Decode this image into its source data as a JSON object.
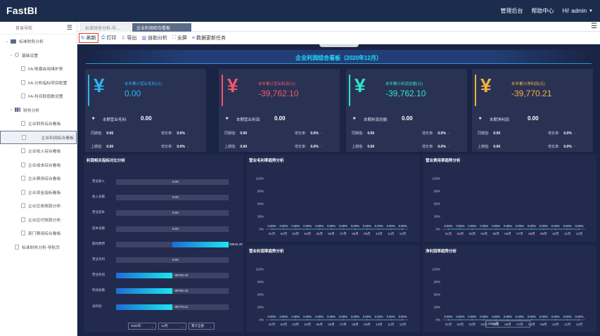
{
  "app": {
    "logo": "FastBI",
    "nav": {
      "admin": "管理后台",
      "help": "帮助中心",
      "greeting": "Hi!",
      "user": "admin"
    }
  },
  "sidebar": {
    "header": "目录导航",
    "tree": [
      {
        "label": "标准财务分析",
        "level": 0,
        "icon": "folder-icon",
        "expanded": true
      },
      {
        "label": "基础设置",
        "level": 1,
        "icon": "settings-icon",
        "expanded": true
      },
      {
        "label": "FA-账套启用维护表",
        "level": 2,
        "icon": "document-icon"
      },
      {
        "label": "FA-分析指标项目配置",
        "level": 2,
        "icon": "document-icon"
      },
      {
        "label": "FA-科目取值数设置",
        "level": 2,
        "icon": "document-icon"
      },
      {
        "label": "财务分析",
        "level": 1,
        "icon": "chart-icon",
        "expanded": true
      },
      {
        "label": "企业财务综合看板",
        "level": 2,
        "icon": "document-icon"
      },
      {
        "label": "企业利润综合看板",
        "level": 2,
        "icon": "document-icon",
        "selected": true
      },
      {
        "label": "企业收入综合看板",
        "level": 2,
        "icon": "document-icon"
      },
      {
        "label": "企业成本综合看板",
        "level": 2,
        "icon": "document-icon"
      },
      {
        "label": "企业费用综合看板",
        "level": 2,
        "icon": "document-icon"
      },
      {
        "label": "企业资金指标看板",
        "level": 2,
        "icon": "document-icon"
      },
      {
        "label": "企业应收账款分析",
        "level": 2,
        "icon": "document-icon"
      },
      {
        "label": "企业应付账款分析",
        "level": 2,
        "icon": "document-icon"
      },
      {
        "label": "部门费用综合看板",
        "level": 2,
        "icon": "document-icon"
      },
      {
        "label": "标准财务分析-导航页",
        "level": 1,
        "icon": "document-icon"
      }
    ]
  },
  "tabs": [
    {
      "label": "标准财务分析-导...",
      "active": false
    },
    {
      "label": "企业利润综合看板",
      "active": true
    }
  ],
  "toolbar": [
    {
      "label": "刷新",
      "icon": "refresh-icon",
      "highlighted": true
    },
    {
      "label": "打印",
      "icon": "print-icon"
    },
    {
      "label": "导出",
      "icon": "export-icon"
    },
    {
      "label": "自助分析",
      "icon": "bar-chart-icon"
    },
    {
      "label": "全屏",
      "icon": "fullscreen-icon"
    },
    {
      "label": "数据更新任务",
      "icon": "task-icon"
    }
  ],
  "dashboard": {
    "title": "企业利润综合看板（2020年12月）",
    "cards": [
      {
        "accent": "#2ab4f0",
        "title": "本年累计营业毛利(元)",
        "value": "0.00",
        "sub_label": "本期营业毛利:",
        "sub_value": "0.00",
        "hb_label": "同期值:",
        "hb_value": "0.00",
        "hb_rate_label": "增长率:",
        "hb_rate": "0.0%",
        "sq_label": "上期值:",
        "sq_value": "0.00",
        "sq_rate_label": "增长率:",
        "sq_rate": "0.0%"
      },
      {
        "accent": "#f2576a",
        "title": "本年累计营业利润(元)",
        "value": "-39,762.10",
        "sub_label": "本期营业利润:",
        "sub_value": "0.00",
        "hb_label": "同期值:",
        "hb_value": "0.00",
        "hb_rate_label": "增长率:",
        "hb_rate": "0.0%",
        "sq_label": "上期值:",
        "sq_value": "0.00",
        "sq_rate_label": "增长率:",
        "sq_rate": "0.0%"
      },
      {
        "accent": "#2ee6c9",
        "title": "本年累计利润总额(元)",
        "value": "-39,762.10",
        "sub_label": "本期利润总额:",
        "sub_value": "0.00",
        "hb_label": "同期值:",
        "hb_value": "0.00",
        "hb_rate_label": "增长率:",
        "hb_rate": "0.0%",
        "sq_label": "上期值:",
        "sq_value": "0.00",
        "sq_rate_label": "增长率:",
        "sq_rate": "0.0%"
      },
      {
        "accent": "#f4b33d",
        "title": "本年累计净利润(元)",
        "value": "-39,770.21",
        "sub_label": "本期净利润:",
        "sub_value": "0.00",
        "hb_label": "同期值:",
        "hb_value": "0.00",
        "hb_rate_label": "增长率:",
        "hb_rate": "0.0%",
        "sq_label": "上期值:",
        "sq_value": "0.00",
        "sq_rate_label": "增长率:",
        "sq_rate": "0.0%"
      }
    ],
    "bar_panel": {
      "title": "利润相关指标对比分析",
      "rows": [
        {
          "label": "营业收入",
          "value": 0,
          "text": "0.00"
        },
        {
          "label": "收入总额",
          "value": 0,
          "text": "0.00"
        },
        {
          "label": "营业成本",
          "value": 0,
          "text": "0.00"
        },
        {
          "label": "成本总额",
          "value": 0,
          "text": "0.00"
        },
        {
          "label": "期间费用",
          "value": 39842.2,
          "text": "39842.20"
        },
        {
          "label": "营业毛利",
          "value": 0,
          "text": "0.00"
        },
        {
          "label": "营业利润",
          "value": -39762.1,
          "text": "-39762.10"
        },
        {
          "label": "利润总额",
          "value": -39762.1,
          "text": "-39762.10"
        },
        {
          "label": "净利润",
          "value": -39770.21,
          "text": "-39770.21"
        }
      ],
      "filters": {
        "year": "2020年",
        "month": "12月",
        "mode": "累计全部"
      }
    },
    "trend_year_filter": "2020年"
  },
  "chart_data": [
    {
      "type": "line",
      "title": "营业毛利率趋势分析",
      "x": [
        "01月",
        "02月",
        "03月",
        "04月",
        "05月",
        "06月",
        "07月",
        "08月",
        "09月",
        "10月",
        "11月",
        "12月"
      ],
      "series": [
        {
          "values": [
            0,
            0,
            0,
            0,
            0,
            0,
            0,
            0,
            0,
            0,
            0,
            0
          ],
          "labels": [
            "0.00%",
            "0.00%",
            "0.00%",
            "0.00%",
            "0.00%",
            "0.00%",
            "0.00%",
            "0.00%",
            "0.00%",
            "0.00%",
            "0.00%",
            "0.00%"
          ]
        }
      ],
      "yticks": [
        "0%",
        "30%",
        "60%",
        "90%",
        "120%"
      ],
      "ylim": [
        0,
        120
      ]
    },
    {
      "type": "line",
      "title": "营业费用率趋势分析",
      "x": [
        "01月",
        "02月",
        "03月",
        "04月",
        "05月",
        "06月",
        "07月",
        "08月",
        "09月",
        "10月",
        "11月",
        "12月"
      ],
      "series": [
        {
          "values": [
            0,
            0,
            0,
            0,
            0,
            0,
            0,
            0,
            0,
            0,
            0,
            0
          ],
          "labels": [
            "0.00%",
            "0.00%",
            "0.00%",
            "0.00%",
            "0.00%",
            "0.00%",
            "0.00%",
            "0.00%",
            "0.00%",
            "0.00%",
            "0.00%",
            "0.00%"
          ]
        }
      ],
      "yticks": [
        "0%",
        "30%",
        "60%",
        "90%",
        "120%"
      ],
      "ylim": [
        0,
        120
      ]
    },
    {
      "type": "line",
      "title": "营业利润率趋势分析",
      "x": [
        "01月",
        "02月",
        "03月",
        "04月",
        "05月",
        "06月",
        "07月",
        "08月",
        "09月",
        "10月",
        "11月",
        "12月"
      ],
      "series": [
        {
          "values": [
            0,
            0,
            0,
            0,
            0,
            0,
            0,
            0,
            0,
            0,
            0,
            0
          ],
          "labels": [
            "0.00%",
            "0.00%",
            "0.00%",
            "0.00%",
            "0.00%",
            "0.00%",
            "0.00%",
            "0.00%",
            "0.00%",
            "0.00%",
            "0.00%",
            "0.00%"
          ]
        }
      ],
      "yticks": [
        "0%",
        "30%",
        "60%",
        "90%",
        "120%"
      ],
      "ylim": [
        0,
        120
      ]
    },
    {
      "type": "line",
      "title": "净利润率趋势分析",
      "x": [
        "01月",
        "02月",
        "03月",
        "04月",
        "05月",
        "06月",
        "07月",
        "08月",
        "09月",
        "10月",
        "11月",
        "12月"
      ],
      "series": [
        {
          "values": [
            0,
            0,
            0,
            0,
            0,
            0,
            0,
            0,
            0,
            0,
            0,
            0
          ],
          "labels": [
            "0.00%",
            "0.00%",
            "0.00%",
            "0.00%",
            "0.00%",
            "0.00%",
            "0.00%",
            "0.00%",
            "0.00%",
            "0.00%",
            "0.00%",
            "0.00%"
          ]
        }
      ],
      "yticks": [
        "0%",
        "30%",
        "60%",
        "90%",
        "120%"
      ],
      "ylim": [
        0,
        120
      ]
    }
  ]
}
